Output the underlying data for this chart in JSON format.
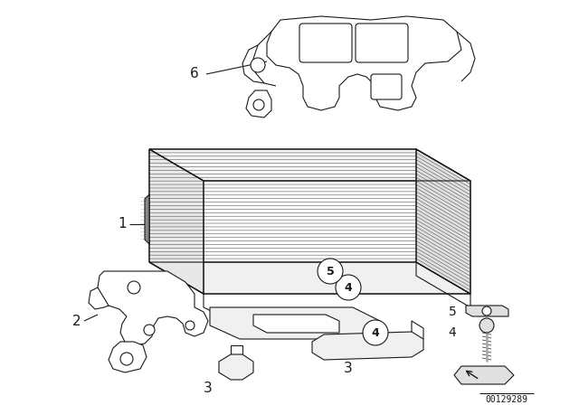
{
  "background_color": "#ffffff",
  "line_color": "#1a1a1a",
  "diagram_id": "00129289",
  "lw": 0.8,
  "fig_w": 6.4,
  "fig_h": 4.48,
  "dpi": 100
}
